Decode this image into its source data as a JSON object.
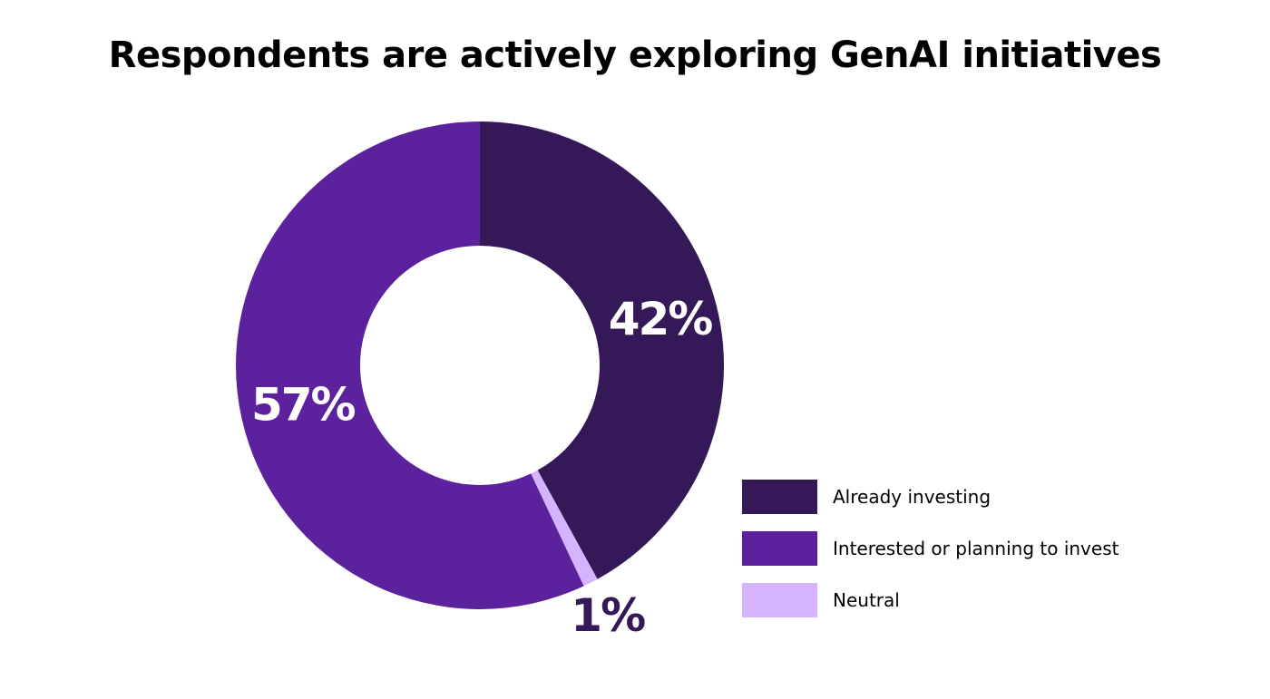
{
  "title": "Respondents are actively exploring GenAI initiatives",
  "chart_data": {
    "type": "pie",
    "title": "Respondents are actively exploring GenAI initiatives",
    "donut": true,
    "legend_position": "bottom-right",
    "slices": [
      {
        "label": "Already investing",
        "value": 42,
        "value_label": "42%",
        "color": "#351858",
        "label_color": "#ffffff"
      },
      {
        "label": "Neutral",
        "value": 1,
        "value_label": "1%",
        "color": "#d5b3fe",
        "label_color": "#351858"
      },
      {
        "label": "Interested or planning to invest",
        "value": 57,
        "value_label": "57%",
        "color": "#5c229e",
        "label_color": "#ffffff"
      }
    ]
  },
  "legend": {
    "items": [
      {
        "label": "Already investing",
        "color": "#351858"
      },
      {
        "label": "Interested or planning to invest",
        "color": "#5c229e"
      },
      {
        "label": "Neutral",
        "color": "#d5b3fe"
      }
    ]
  }
}
